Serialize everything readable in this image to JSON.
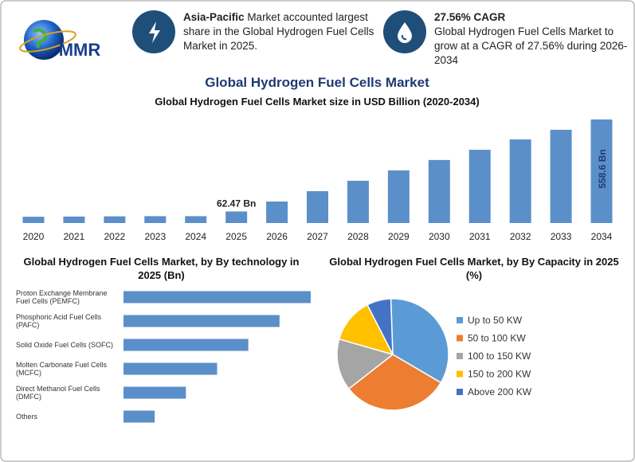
{
  "header": {
    "logo": "MMR",
    "info": [
      {
        "highlight": "Asia-Pacific",
        "text": "Market accounted largest share in the Global Hydrogen Fuel Cells Market in 2025."
      },
      {
        "highlight": "27.56% CAGR",
        "text": "Global Hydrogen Fuel Cells Market to grow at a CAGR of 27.56% during 2026-2034"
      }
    ]
  },
  "chart_data": [
    {
      "type": "bar",
      "title": "Global Hydrogen Fuel Cells Market",
      "subtitle": "Global Hydrogen Fuel Cells Market size in USD Billion (2020-2034)",
      "categories": [
        "2020",
        "2021",
        "2022",
        "2023",
        "2024",
        "2025",
        "2026",
        "2027",
        "2028",
        "2029",
        "2030",
        "2031",
        "2032",
        "2033",
        "2034"
      ],
      "values": [
        34,
        35,
        36,
        37,
        37,
        62.47,
        116,
        172,
        228,
        284,
        340,
        395,
        451,
        503,
        558.6
      ],
      "value_labels": [
        null,
        null,
        null,
        null,
        null,
        "62.47 Bn",
        null,
        null,
        null,
        null,
        null,
        null,
        null,
        null,
        "558.6 Bn"
      ],
      "color": "#5b8fc9"
    },
    {
      "type": "bar",
      "orientation": "horizontal",
      "title": "Global Hydrogen Fuel Cells Market, by By technology in 2025 (Bn)",
      "categories": [
        "Proton Exchange Membrane Fuel Cells (PEMFC)",
        "Phosphoric Acid Fuel Cells (PAFC)",
        "Solid Oxide Fuel Cells (SOFC)",
        "Molten Carbonate Fuel Cells (MCFC)",
        "Direct Methanol Fuel Cells (DMFC)",
        "Others"
      ],
      "values": [
        18,
        15,
        12,
        9,
        6,
        3
      ],
      "color": "#5b8fc9"
    },
    {
      "type": "pie",
      "title": "Global Hydrogen Fuel Cells Market, by By Capacity in 2025 (%)",
      "categories": [
        "Up to 50 KW",
        "50 to 100 KW",
        "100 to 150 KW",
        "150 to 200 KW",
        "Above 200 KW"
      ],
      "values": [
        34,
        31,
        15,
        13,
        7
      ],
      "colors": [
        "#5b9bd5",
        "#ed7d31",
        "#a5a5a5",
        "#ffc000",
        "#4472c4"
      ],
      "legend": "right"
    }
  ]
}
